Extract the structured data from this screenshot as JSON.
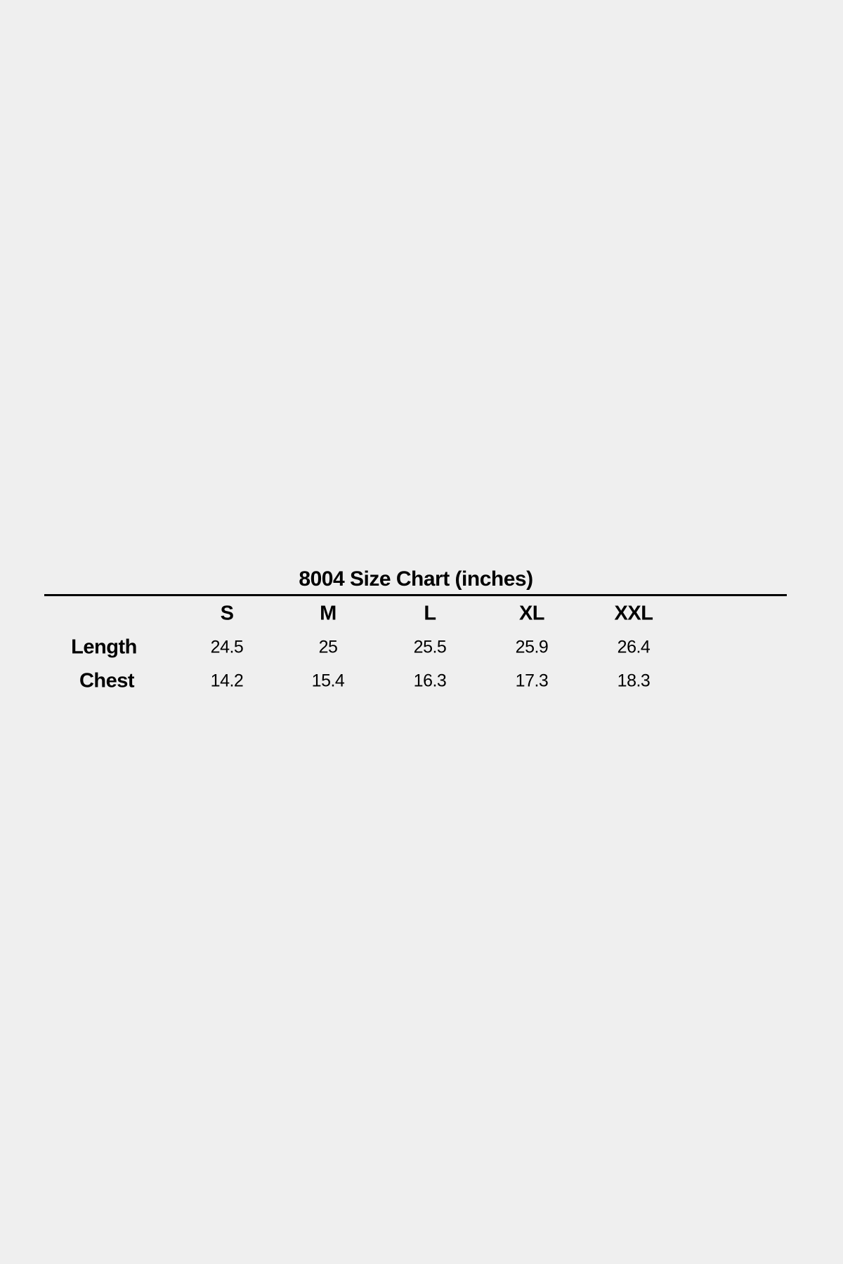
{
  "chart_data": {
    "type": "table",
    "title": "8004 Size Chart (inches)",
    "columns": [
      "S",
      "M",
      "L",
      "XL",
      "XXL"
    ],
    "rows": [
      {
        "label": "Length",
        "values": [
          "24.5",
          "25",
          "25.5",
          "25.9",
          "26.4"
        ]
      },
      {
        "label": "Chest",
        "values": [
          "14.2",
          "15.4",
          "16.3",
          "17.3",
          "18.3"
        ]
      }
    ]
  }
}
